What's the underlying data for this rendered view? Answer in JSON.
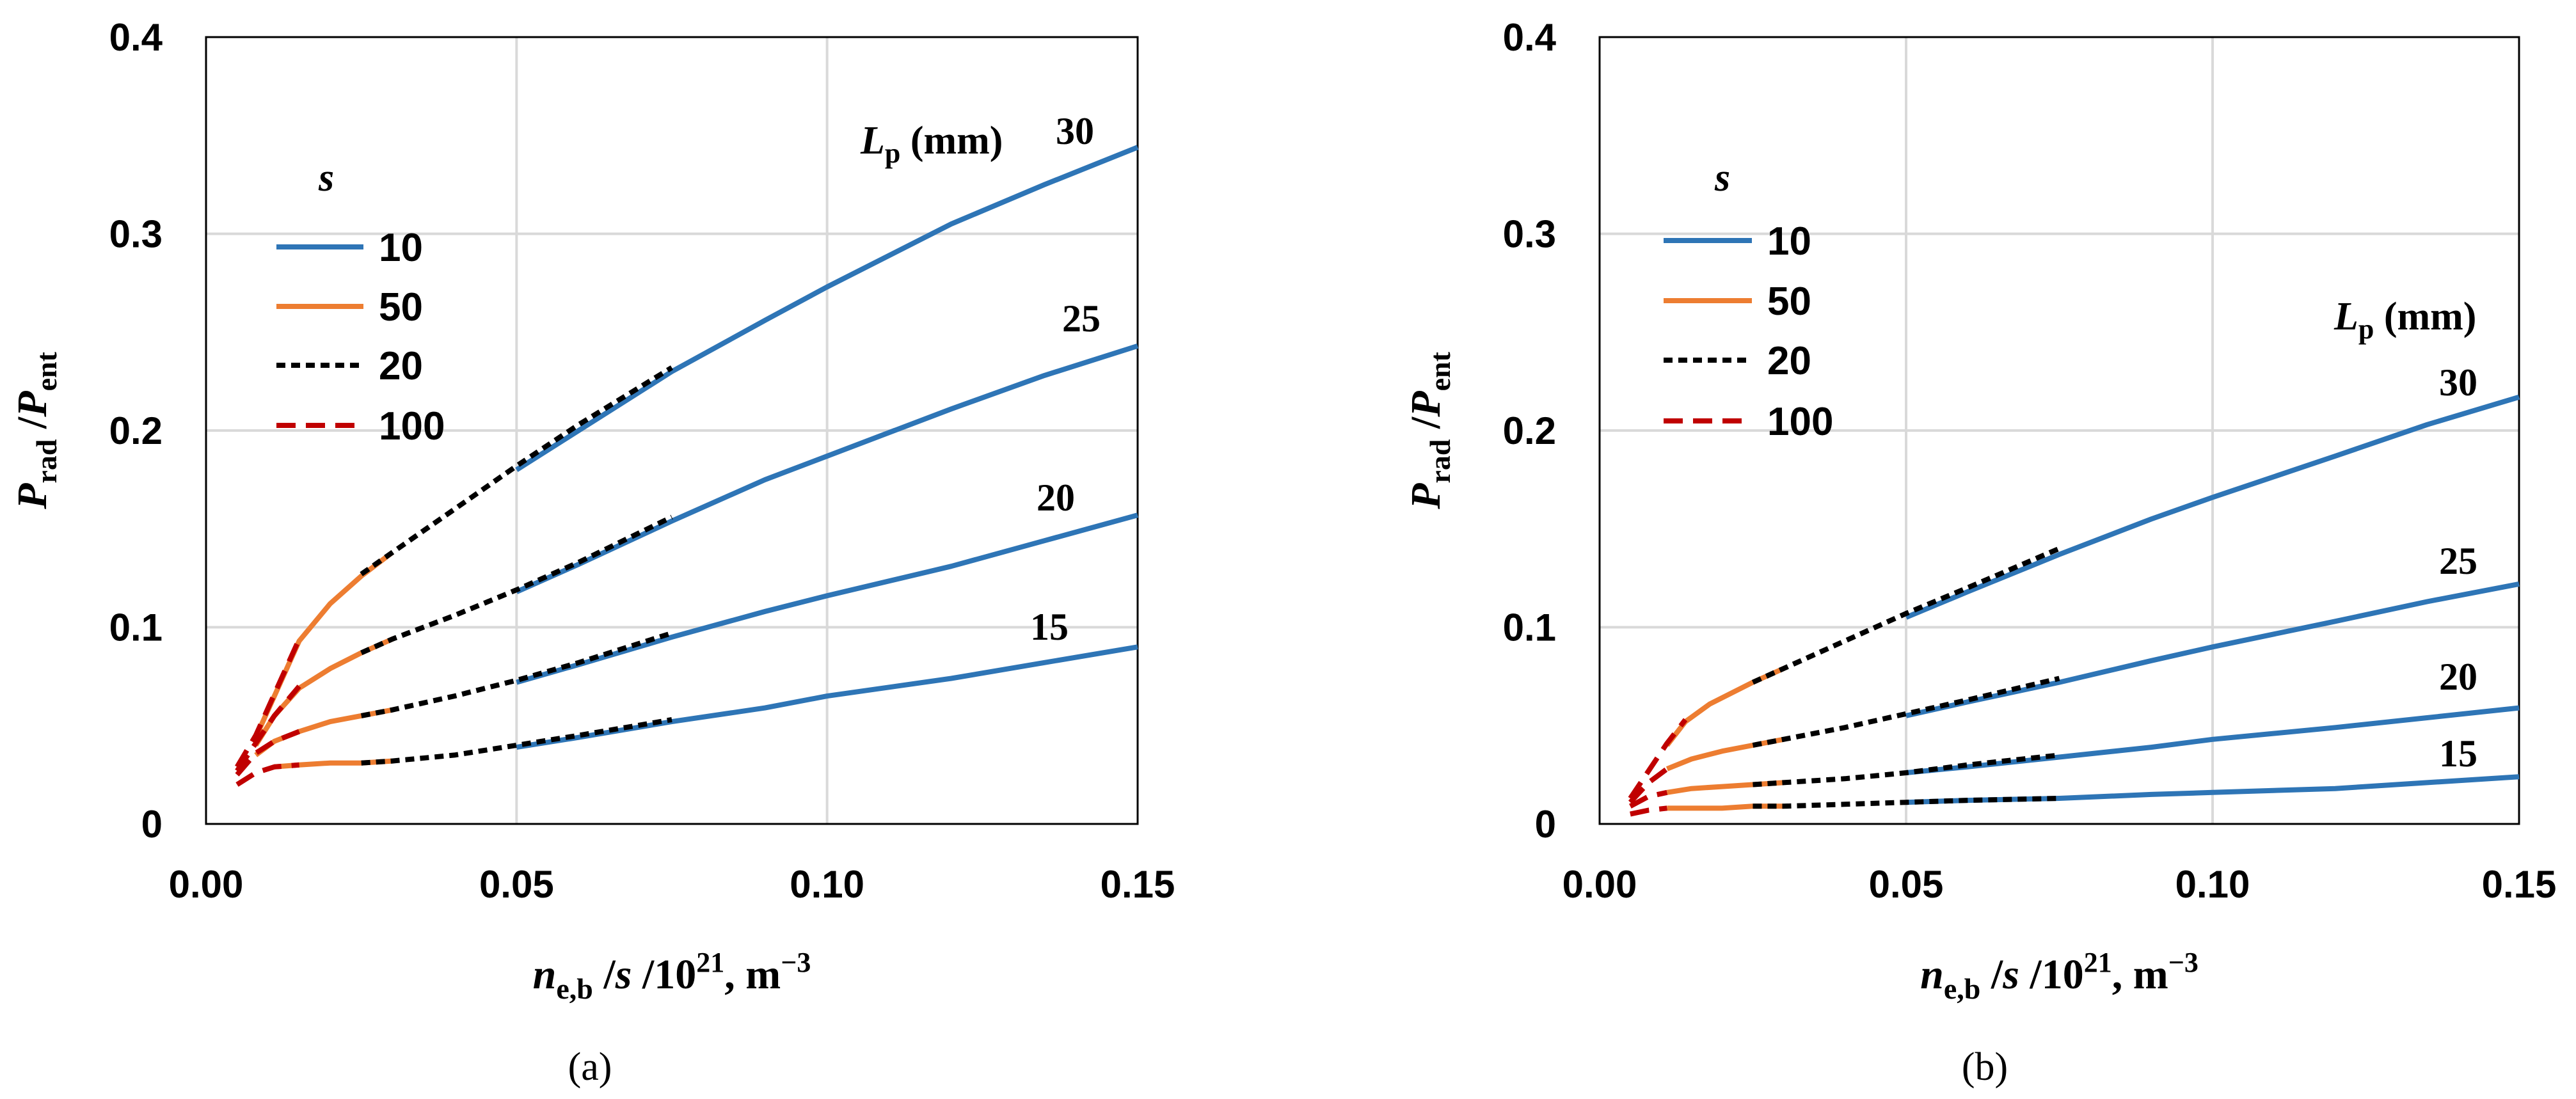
{
  "figure": {
    "xlabel": {
      "main": "n",
      "sub": "e,b",
      "mid": " /",
      "italic2": "s",
      "rest": " /10",
      "sup": "21",
      "tail": ", m",
      "sup2": "−3"
    },
    "ylabel": {
      "p1": "P",
      "s1": "rad",
      "mid": " /",
      "p2": "P",
      "s2": "ent"
    },
    "legend_title": "s",
    "lp_label": {
      "main": "L",
      "sub": "p",
      "rest": " (mm)"
    },
    "series_styles": [
      {
        "name": "10",
        "color": "#2e75b6",
        "dash": "none"
      },
      {
        "name": "50",
        "color": "#ed7d31",
        "dash": "none"
      },
      {
        "name": "20",
        "color": "#000000",
        "dash": "14,9"
      },
      {
        "name": "100",
        "color": "#c00000",
        "dash": "30,16"
      }
    ]
  },
  "chart_data": [
    {
      "type": "line",
      "panel_label": "(a)",
      "xlim": [
        0,
        0.15
      ],
      "ylim": [
        0,
        0.4
      ],
      "x_ticks": [
        "0.00",
        "0.05",
        "0.10",
        "0.15"
      ],
      "y_ticks": [
        "0",
        "0.1",
        "0.2",
        "0.3",
        "0.4"
      ],
      "grid": true,
      "legend": [
        "10",
        "50",
        "20",
        "100"
      ],
      "curves": [
        {
          "lp": "30",
          "segments": {
            "100": [
              [
                0.005,
                0.029
              ],
              [
                0.008,
                0.045
              ],
              [
                0.011,
                0.066
              ],
              [
                0.015,
                0.094
              ]
            ],
            "50": [
              [
                0.008,
                0.044
              ],
              [
                0.011,
                0.065
              ],
              [
                0.015,
                0.093
              ],
              [
                0.02,
                0.112
              ],
              [
                0.025,
                0.126
              ],
              [
                0.03,
                0.138
              ]
            ],
            "20": [
              [
                0.025,
                0.127
              ],
              [
                0.03,
                0.138
              ],
              [
                0.04,
                0.16
              ],
              [
                0.05,
                0.182
              ],
              [
                0.06,
                0.203
              ],
              [
                0.075,
                0.232
              ]
            ],
            "10": [
              [
                0.05,
                0.18
              ],
              [
                0.06,
                0.2
              ],
              [
                0.075,
                0.23
              ],
              [
                0.09,
                0.256
              ],
              [
                0.1,
                0.273
              ],
              [
                0.12,
                0.305
              ],
              [
                0.135,
                0.325
              ],
              [
                0.15,
                0.344
              ]
            ]
          }
        },
        {
          "lp": "25",
          "segments": {
            "100": [
              [
                0.005,
                0.027
              ],
              [
                0.008,
                0.041
              ],
              [
                0.011,
                0.055
              ],
              [
                0.015,
                0.07
              ]
            ],
            "50": [
              [
                0.008,
                0.04
              ],
              [
                0.011,
                0.055
              ],
              [
                0.015,
                0.069
              ],
              [
                0.02,
                0.079
              ],
              [
                0.025,
                0.087
              ],
              [
                0.03,
                0.094
              ]
            ],
            "20": [
              [
                0.025,
                0.087
              ],
              [
                0.03,
                0.094
              ],
              [
                0.04,
                0.106
              ],
              [
                0.05,
                0.119
              ],
              [
                0.06,
                0.133
              ],
              [
                0.075,
                0.156
              ]
            ],
            "10": [
              [
                0.05,
                0.118
              ],
              [
                0.06,
                0.132
              ],
              [
                0.075,
                0.154
              ],
              [
                0.09,
                0.175
              ],
              [
                0.1,
                0.187
              ],
              [
                0.12,
                0.211
              ],
              [
                0.135,
                0.228
              ],
              [
                0.15,
                0.243
              ]
            ]
          }
        },
        {
          "lp": "20",
          "segments": {
            "100": [
              [
                0.005,
                0.025
              ],
              [
                0.008,
                0.036
              ],
              [
                0.011,
                0.042
              ],
              [
                0.015,
                0.047
              ]
            ],
            "50": [
              [
                0.008,
                0.035
              ],
              [
                0.011,
                0.042
              ],
              [
                0.015,
                0.047
              ],
              [
                0.02,
                0.052
              ],
              [
                0.025,
                0.055
              ],
              [
                0.03,
                0.058
              ]
            ],
            "20": [
              [
                0.025,
                0.055
              ],
              [
                0.03,
                0.058
              ],
              [
                0.04,
                0.065
              ],
              [
                0.05,
                0.073
              ],
              [
                0.06,
                0.082
              ],
              [
                0.075,
                0.097
              ]
            ],
            "10": [
              [
                0.05,
                0.072
              ],
              [
                0.06,
                0.081
              ],
              [
                0.075,
                0.095
              ],
              [
                0.09,
                0.108
              ],
              [
                0.1,
                0.116
              ],
              [
                0.12,
                0.131
              ],
              [
                0.135,
                0.144
              ],
              [
                0.15,
                0.157
              ]
            ]
          }
        },
        {
          "lp": "15",
          "segments": {
            "100": [
              [
                0.005,
                0.02
              ],
              [
                0.008,
                0.026
              ],
              [
                0.011,
                0.029
              ],
              [
                0.015,
                0.03
              ]
            ],
            "50": [
              [
                0.011,
                0.029
              ],
              [
                0.015,
                0.03
              ],
              [
                0.02,
                0.031
              ],
              [
                0.025,
                0.031
              ],
              [
                0.03,
                0.032
              ]
            ],
            "20": [
              [
                0.025,
                0.031
              ],
              [
                0.03,
                0.032
              ],
              [
                0.04,
                0.035
              ],
              [
                0.05,
                0.04
              ],
              [
                0.06,
                0.045
              ],
              [
                0.075,
                0.053
              ]
            ],
            "10": [
              [
                0.05,
                0.039
              ],
              [
                0.06,
                0.044
              ],
              [
                0.075,
                0.052
              ],
              [
                0.09,
                0.059
              ],
              [
                0.1,
                0.065
              ],
              [
                0.12,
                0.074
              ],
              [
                0.135,
                0.082
              ],
              [
                0.15,
                0.09
              ]
            ]
          }
        }
      ]
    },
    {
      "type": "line",
      "panel_label": "(b)",
      "xlim": [
        0,
        0.15
      ],
      "ylim": [
        0,
        0.4
      ],
      "x_ticks": [
        "0.00",
        "0.05",
        "0.10",
        "0.15"
      ],
      "y_ticks": [
        "0",
        "0.1",
        "0.2",
        "0.3",
        "0.4"
      ],
      "grid": true,
      "legend": [
        "10",
        "50",
        "20",
        "100"
      ],
      "curves": [
        {
          "lp": "30",
          "segments": {
            "100": [
              [
                0.005,
                0.013
              ],
              [
                0.008,
                0.027
              ],
              [
                0.011,
                0.041
              ],
              [
                0.014,
                0.053
              ]
            ],
            "50": [
              [
                0.011,
                0.04
              ],
              [
                0.014,
                0.052
              ],
              [
                0.018,
                0.061
              ],
              [
                0.025,
                0.072
              ],
              [
                0.03,
                0.079
              ]
            ],
            "20": [
              [
                0.025,
                0.072
              ],
              [
                0.03,
                0.079
              ],
              [
                0.04,
                0.093
              ],
              [
                0.05,
                0.107
              ],
              [
                0.06,
                0.12
              ],
              [
                0.075,
                0.14
              ]
            ],
            "10": [
              [
                0.05,
                0.105
              ],
              [
                0.06,
                0.118
              ],
              [
                0.075,
                0.137
              ],
              [
                0.09,
                0.155
              ],
              [
                0.1,
                0.166
              ],
              [
                0.12,
                0.187
              ],
              [
                0.135,
                0.203
              ],
              [
                0.15,
                0.217
              ]
            ]
          }
        },
        {
          "lp": "25",
          "segments": {
            "100": [
              [
                0.005,
                0.011
              ],
              [
                0.008,
                0.021
              ],
              [
                0.011,
                0.028
              ]
            ],
            "50": [
              [
                0.011,
                0.028
              ],
              [
                0.015,
                0.033
              ],
              [
                0.02,
                0.037
              ],
              [
                0.025,
                0.04
              ],
              [
                0.03,
                0.043
              ]
            ],
            "20": [
              [
                0.025,
                0.04
              ],
              [
                0.03,
                0.043
              ],
              [
                0.04,
                0.049
              ],
              [
                0.05,
                0.056
              ],
              [
                0.06,
                0.063
              ],
              [
                0.075,
                0.074
              ]
            ],
            "10": [
              [
                0.05,
                0.055
              ],
              [
                0.06,
                0.062
              ],
              [
                0.075,
                0.072
              ],
              [
                0.09,
                0.083
              ],
              [
                0.1,
                0.09
              ],
              [
                0.12,
                0.103
              ],
              [
                0.135,
                0.113
              ],
              [
                0.15,
                0.122
              ]
            ]
          }
        },
        {
          "lp": "20",
          "segments": {
            "100": [
              [
                0.005,
                0.009
              ],
              [
                0.008,
                0.014
              ],
              [
                0.011,
                0.016
              ]
            ],
            "50": [
              [
                0.011,
                0.016
              ],
              [
                0.015,
                0.018
              ],
              [
                0.02,
                0.019
              ],
              [
                0.025,
                0.02
              ],
              [
                0.03,
                0.021
              ]
            ],
            "20": [
              [
                0.025,
                0.02
              ],
              [
                0.03,
                0.021
              ],
              [
                0.04,
                0.023
              ],
              [
                0.05,
                0.026
              ],
              [
                0.06,
                0.03
              ],
              [
                0.075,
                0.035
              ]
            ],
            "10": [
              [
                0.05,
                0.026
              ],
              [
                0.06,
                0.029
              ],
              [
                0.075,
                0.034
              ],
              [
                0.09,
                0.039
              ],
              [
                0.1,
                0.043
              ],
              [
                0.12,
                0.049
              ],
              [
                0.135,
                0.054
              ],
              [
                0.15,
                0.059
              ]
            ]
          }
        },
        {
          "lp": "15",
          "segments": {
            "100": [
              [
                0.005,
                0.005
              ],
              [
                0.008,
                0.007
              ],
              [
                0.011,
                0.008
              ]
            ],
            "50": [
              [
                0.011,
                0.008
              ],
              [
                0.015,
                0.008
              ],
              [
                0.02,
                0.008
              ],
              [
                0.025,
                0.009
              ],
              [
                0.03,
                0.009
              ]
            ],
            "20": [
              [
                0.025,
                0.009
              ],
              [
                0.03,
                0.009
              ],
              [
                0.04,
                0.01
              ],
              [
                0.05,
                0.011
              ],
              [
                0.06,
                0.012
              ],
              [
                0.075,
                0.013
              ]
            ],
            "10": [
              [
                0.05,
                0.011
              ],
              [
                0.06,
                0.012
              ],
              [
                0.075,
                0.013
              ],
              [
                0.09,
                0.015
              ],
              [
                0.1,
                0.016
              ],
              [
                0.12,
                0.018
              ],
              [
                0.135,
                0.021
              ],
              [
                0.15,
                0.024
              ]
            ]
          }
        }
      ]
    }
  ]
}
